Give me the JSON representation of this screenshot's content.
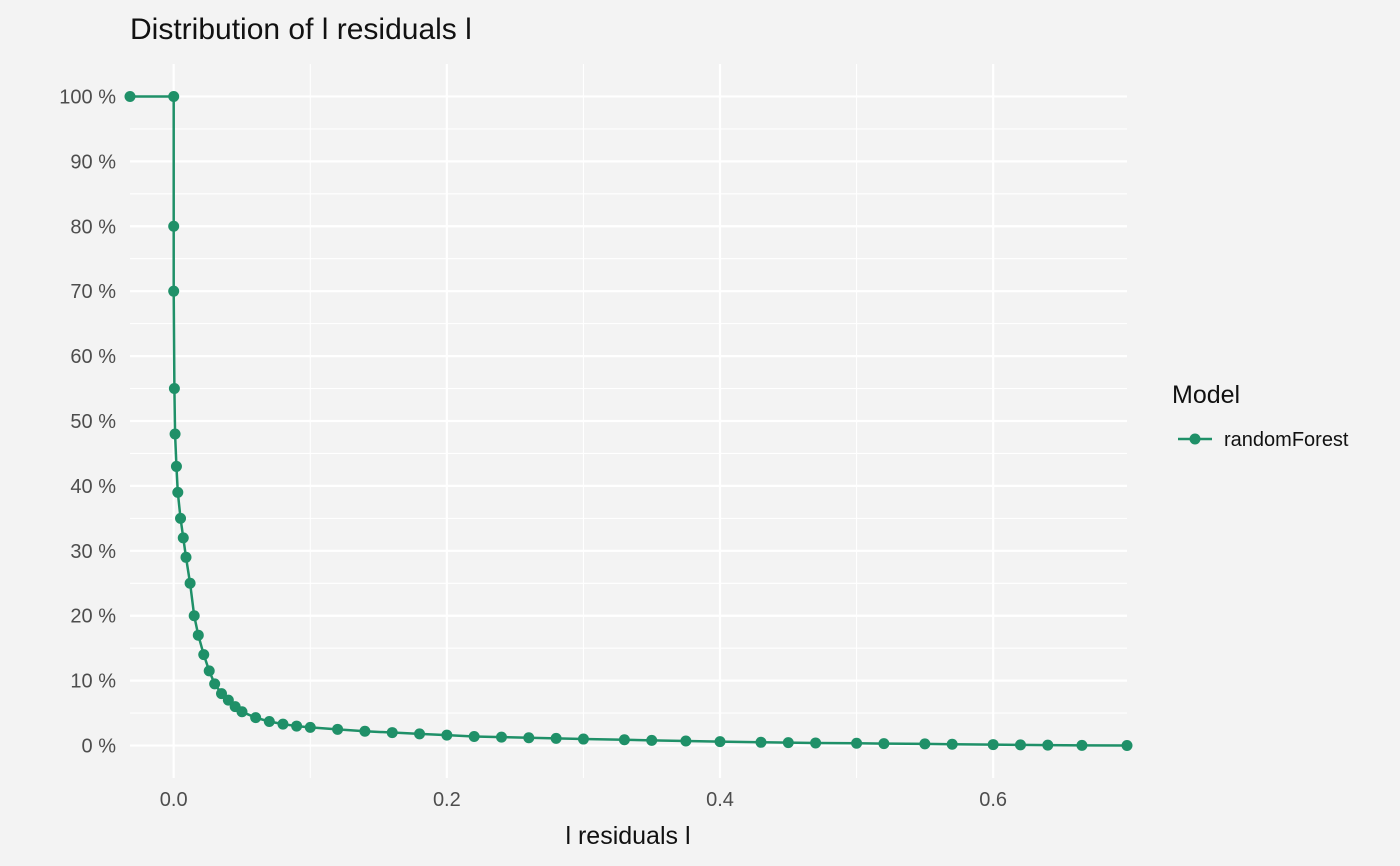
{
  "chart_data": {
    "type": "line",
    "title": "Distribution of l residuals l",
    "xlabel": "l residuals l",
    "ylabel": "",
    "xlim": [
      -0.032,
      0.698
    ],
    "ylim": [
      -0.05,
      1.05
    ],
    "x_ticks": [
      0.0,
      0.2,
      0.4,
      0.6
    ],
    "x_tick_labels": [
      "0.0",
      "0.2",
      "0.4",
      "0.6"
    ],
    "y_ticks": [
      0,
      0.1,
      0.2,
      0.3,
      0.4,
      0.5,
      0.6,
      0.7,
      0.8,
      0.9,
      1.0
    ],
    "y_tick_labels": [
      "0 %",
      "10 %",
      "20 %",
      "30 %",
      "40 %",
      "50 %",
      "60 %",
      "70 %",
      "80 %",
      "90 %",
      "100 %"
    ],
    "grid": true,
    "legend": {
      "title": "Model",
      "position": "right"
    },
    "series": [
      {
        "name": "randomForest",
        "color": "#1f9068",
        "x": [
          -0.032,
          0.0,
          0.0,
          0.0,
          0.0005,
          0.001,
          0.002,
          0.003,
          0.005,
          0.007,
          0.009,
          0.012,
          0.015,
          0.018,
          0.022,
          0.026,
          0.03,
          0.035,
          0.04,
          0.045,
          0.05,
          0.06,
          0.07,
          0.08,
          0.09,
          0.1,
          0.12,
          0.14,
          0.16,
          0.18,
          0.2,
          0.22,
          0.24,
          0.26,
          0.28,
          0.3,
          0.33,
          0.35,
          0.375,
          0.4,
          0.43,
          0.45,
          0.47,
          0.5,
          0.52,
          0.55,
          0.57,
          0.6,
          0.62,
          0.64,
          0.665,
          0.698
        ],
        "y": [
          1.0,
          1.0,
          0.8,
          0.7,
          0.55,
          0.48,
          0.43,
          0.39,
          0.35,
          0.32,
          0.29,
          0.25,
          0.2,
          0.17,
          0.14,
          0.115,
          0.095,
          0.08,
          0.07,
          0.06,
          0.052,
          0.043,
          0.037,
          0.033,
          0.03,
          0.028,
          0.025,
          0.022,
          0.02,
          0.018,
          0.016,
          0.014,
          0.013,
          0.012,
          0.011,
          0.01,
          0.009,
          0.008,
          0.007,
          0.006,
          0.005,
          0.0045,
          0.004,
          0.0035,
          0.003,
          0.0025,
          0.002,
          0.0015,
          0.001,
          0.0007,
          0.0003,
          0.0
        ]
      }
    ]
  }
}
